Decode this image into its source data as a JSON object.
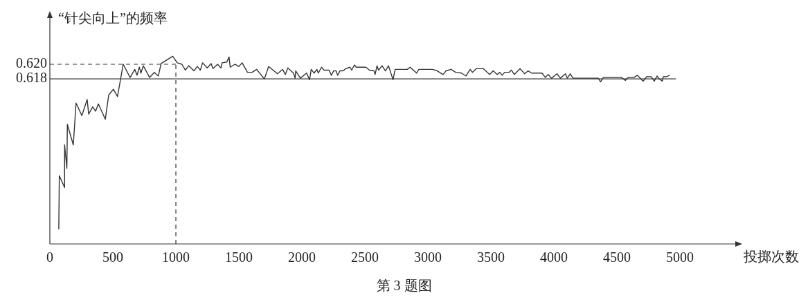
{
  "chart_data": {
    "type": "line",
    "ylabel": "“针尖向上”的频率",
    "xlabel": "投掷次数",
    "annotations": [
      "第 3 题图"
    ],
    "xlim": [
      0,
      5450
    ],
    "xticks": [
      0,
      500,
      1000,
      1500,
      2000,
      2500,
      3000,
      3500,
      4000,
      4500,
      5000
    ],
    "ylim": [
      0.5955,
      0.6265
    ],
    "yticks": [
      {
        "value": 0.62,
        "label": "0.620"
      },
      {
        "value": 0.618,
        "label": "0.618"
      }
    ],
    "grid": false,
    "legend": false,
    "line_style": "solid",
    "ref_lines": [
      {
        "axis": "y",
        "value": 0.618,
        "line_style": "solid"
      },
      {
        "axis": "y",
        "value": 0.62,
        "line_style": "dashed"
      },
      {
        "axis": "x",
        "value": 1000,
        "line_style": "dashed"
      }
    ],
    "series": [
      {
        "color": "#333333",
        "x": [
          71,
          75,
          117,
          117,
          135,
          139,
          186,
          208,
          254,
          296,
          308,
          340,
          363,
          385,
          440,
          467,
          504,
          537,
          582,
          637,
          674,
          692,
          710,
          723,
          741,
          792,
          829,
          861,
          883,
          975,
          1011,
          1048,
          1075,
          1102,
          1143,
          1170,
          1194,
          1212,
          1249,
          1280,
          1294,
          1331,
          1358,
          1367,
          1404,
          1422,
          1431,
          1468,
          1499,
          1526,
          1568,
          1605,
          1641,
          1702,
          1736,
          1806,
          1847,
          1869,
          1888,
          1933,
          1946,
          1951,
          1988,
          2037,
          2061,
          2074,
          2097,
          2119,
          2130,
          2156,
          2176,
          2216,
          2234,
          2252,
          2271,
          2284,
          2302,
          2326,
          2348,
          2381,
          2395,
          2417,
          2432,
          2508,
          2536,
          2572,
          2581,
          2596,
          2608,
          2636,
          2663,
          2687,
          2723,
          2740,
          2837,
          2859,
          2910,
          2928,
          3038,
          3074,
          3120,
          3144,
          3183,
          3220,
          3266,
          3302,
          3335,
          3353,
          3384,
          3439,
          3490,
          3518,
          3549,
          3571,
          3589,
          3609,
          3644,
          3662,
          3686,
          3731,
          3768,
          3795,
          3823,
          3905,
          3932,
          3954,
          3981,
          4024,
          4051,
          4091,
          4106,
          4129,
          4151,
          4352,
          4370,
          4392,
          4535,
          4567,
          4589,
          4635,
          4662,
          4708,
          4736,
          4772,
          4796,
          4818,
          4836,
          4860,
          4867,
          4891,
          4918
        ],
        "values": [
          0.5975,
          0.6048,
          0.6032,
          0.609,
          0.6058,
          0.6118,
          0.609,
          0.6147,
          0.613,
          0.6152,
          0.6132,
          0.6142,
          0.6136,
          0.6146,
          0.6125,
          0.6158,
          0.6166,
          0.6156,
          0.62,
          0.6182,
          0.6193,
          0.6185,
          0.6196,
          0.6188,
          0.6198,
          0.6182,
          0.6189,
          0.6184,
          0.6201,
          0.6211,
          0.6202,
          0.62,
          0.6192,
          0.6198,
          0.6191,
          0.6197,
          0.6192,
          0.6202,
          0.6195,
          0.6201,
          0.6194,
          0.62,
          0.6195,
          0.6202,
          0.6203,
          0.621,
          0.6196,
          0.62,
          0.6197,
          0.6202,
          0.6189,
          0.6189,
          0.6193,
          0.618,
          0.6197,
          0.6187,
          0.6193,
          0.6186,
          0.6195,
          0.6188,
          0.6181,
          0.6191,
          0.6181,
          0.6188,
          0.6179,
          0.6193,
          0.6188,
          0.6193,
          0.6188,
          0.6196,
          0.6192,
          0.6192,
          0.6185,
          0.6191,
          0.6191,
          0.6185,
          0.6191,
          0.6191,
          0.6194,
          0.6196,
          0.6192,
          0.6199,
          0.6196,
          0.6196,
          0.6192,
          0.6191,
          0.6186,
          0.6198,
          0.6192,
          0.6198,
          0.6191,
          0.6198,
          0.6179,
          0.6193,
          0.6193,
          0.6196,
          0.6188,
          0.6193,
          0.6193,
          0.6191,
          0.6186,
          0.6191,
          0.6193,
          0.6189,
          0.6188,
          0.6184,
          0.6193,
          0.6189,
          0.6194,
          0.6194,
          0.6186,
          0.6191,
          0.6186,
          0.6189,
          0.6185,
          0.6189,
          0.6189,
          0.6192,
          0.6186,
          0.6194,
          0.6187,
          0.6191,
          0.6188,
          0.6188,
          0.6182,
          0.6186,
          0.6181,
          0.6187,
          0.6181,
          0.6187,
          0.6181,
          0.6187,
          0.6181,
          0.6181,
          0.6176,
          0.6182,
          0.6182,
          0.6178,
          0.6182,
          0.6182,
          0.6185,
          0.6177,
          0.6183,
          0.6183,
          0.6177,
          0.6184,
          0.618,
          0.6177,
          0.6183,
          0.6183,
          0.6185
        ]
      }
    ]
  }
}
